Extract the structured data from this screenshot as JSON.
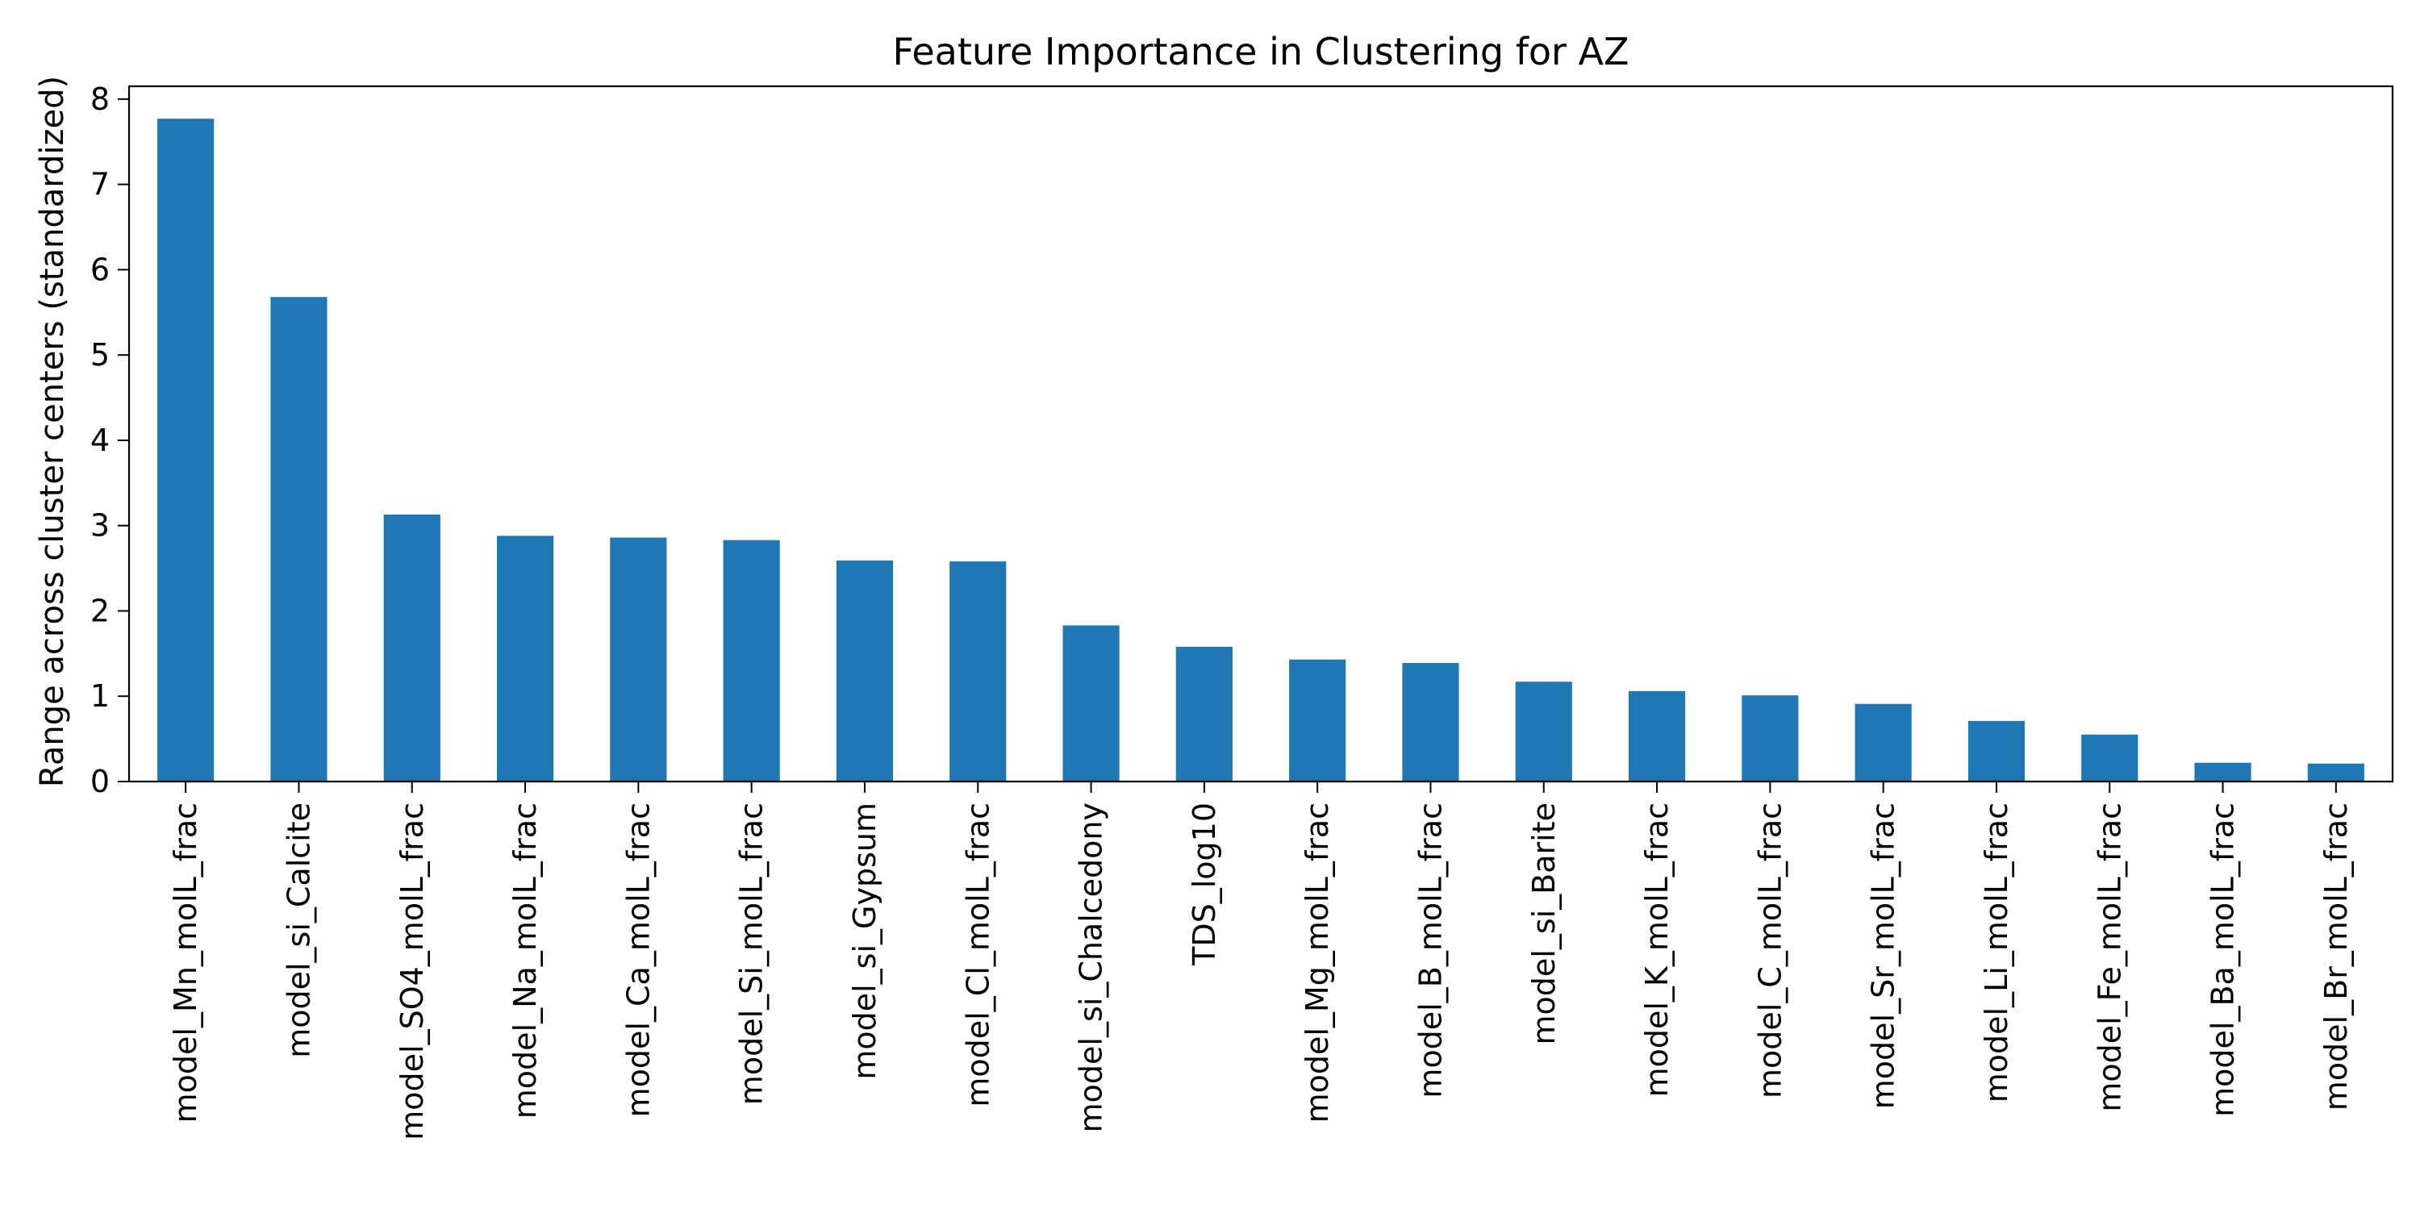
{
  "chart_data": {
    "type": "bar",
    "title": "Feature Importance in Clustering for AZ",
    "xlabel": "",
    "ylabel": "Range across cluster centers (standardized)",
    "categories": [
      "model_Mn_molL_frac",
      "model_si_Calcite",
      "model_SO4_molL_frac",
      "model_Na_molL_frac",
      "model_Ca_molL_frac",
      "model_Si_molL_frac",
      "model_si_Gypsum",
      "model_Cl_molL_frac",
      "model_si_Chalcedony",
      "TDS_log10",
      "model_Mg_molL_frac",
      "model_B_molL_frac",
      "model_si_Barite",
      "model_K_molL_frac",
      "model_C_molL_frac",
      "model_Sr_molL_frac",
      "model_Li_molL_frac",
      "model_Fe_molL_frac",
      "model_Ba_molL_frac",
      "model_Br_molL_frac"
    ],
    "values": [
      7.77,
      5.68,
      3.13,
      2.88,
      2.86,
      2.83,
      2.59,
      2.58,
      1.83,
      1.58,
      1.43,
      1.39,
      1.17,
      1.06,
      1.01,
      0.91,
      0.71,
      0.55,
      0.22,
      0.21
    ],
    "ylim": [
      0,
      8.15
    ],
    "yticks": [
      "0",
      "1",
      "2",
      "3",
      "4",
      "5",
      "6",
      "7",
      "8"
    ],
    "grid": false,
    "legend": "none",
    "bar_color": "#1f77b4"
  }
}
